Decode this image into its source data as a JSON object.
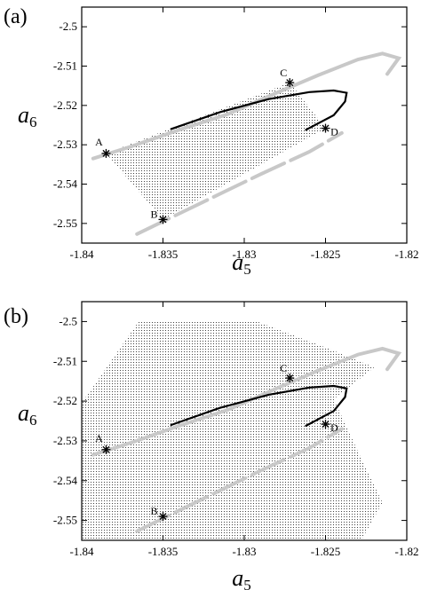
{
  "chart_data": [
    {
      "type": "scatter",
      "panel_label": "(a)",
      "xlabel_main": "a",
      "xlabel_sub": "5",
      "ylabel_main": "a",
      "ylabel_sub": "6",
      "xlim": [
        -1.84,
        -1.82
      ],
      "ylim": [
        -2.555,
        -2.495
      ],
      "xticks": [
        "-1.84",
        "-1.835",
        "-1.83",
        "-1.825",
        "-1.82"
      ],
      "yticks": [
        "-2.5",
        "-2.51",
        "-2.52",
        "-2.53",
        "-2.54",
        "-2.55"
      ],
      "xtick_values": [
        -1.84,
        -1.835,
        -1.83,
        -1.825,
        -1.82
      ],
      "ytick_values": [
        -2.5,
        -2.51,
        -2.52,
        -2.53,
        -2.54,
        -2.55
      ],
      "points": [
        {
          "label": "A",
          "x": -1.8385,
          "y": -2.5322
        },
        {
          "label": "B",
          "x": -1.835,
          "y": -2.549
        },
        {
          "label": "C",
          "x": -1.8272,
          "y": -2.5142
        },
        {
          "label": "D",
          "x": -1.825,
          "y": -2.5258
        }
      ],
      "region": [
        [
          -1.8385,
          -2.5322
        ],
        [
          -1.835,
          -2.549
        ],
        [
          -1.825,
          -2.5258
        ],
        [
          -1.8272,
          -2.5142
        ]
      ],
      "gray_upper": [
        [
          -1.8393,
          -2.5335
        ],
        [
          -1.837,
          -2.5305
        ],
        [
          -1.834,
          -2.5262
        ],
        [
          -1.831,
          -2.5222
        ],
        [
          -1.828,
          -2.5168
        ],
        [
          -1.8255,
          -2.5124
        ],
        [
          -1.823,
          -2.5083
        ],
        [
          -1.8215,
          -2.5068
        ],
        [
          -1.8205,
          -2.508
        ],
        [
          -1.8212,
          -2.512
        ]
      ],
      "gray_lower": [
        [
          -1.8366,
          -2.5527
        ],
        [
          -1.835,
          -2.5495
        ],
        [
          -1.832,
          -2.5435
        ],
        [
          -1.829,
          -2.5375
        ],
        [
          -1.826,
          -2.5318
        ],
        [
          -1.824,
          -2.527
        ]
      ],
      "black_curve": [
        [
          -1.8345,
          -2.526
        ],
        [
          -1.8315,
          -2.5217
        ],
        [
          -1.8285,
          -2.5184
        ],
        [
          -1.826,
          -2.5166
        ],
        [
          -1.8245,
          -2.5162
        ],
        [
          -1.8237,
          -2.5168
        ],
        [
          -1.8238,
          -2.519
        ],
        [
          -1.8245,
          -2.5225
        ],
        [
          -1.8262,
          -2.5262
        ]
      ]
    },
    {
      "type": "scatter",
      "panel_label": "(b)",
      "xlabel_main": "a",
      "xlabel_sub": "5",
      "ylabel_main": "a",
      "ylabel_sub": "6",
      "xlim": [
        -1.84,
        -1.82
      ],
      "ylim": [
        -2.555,
        -2.495
      ],
      "xticks": [
        "-1.84",
        "-1.835",
        "-1.83",
        "-1.825",
        "-1.82"
      ],
      "yticks": [
        "-2.5",
        "-2.51",
        "-2.52",
        "-2.53",
        "-2.54",
        "-2.55"
      ],
      "xtick_values": [
        -1.84,
        -1.835,
        -1.83,
        -1.825,
        -1.82
      ],
      "ytick_values": [
        -2.5,
        -2.51,
        -2.52,
        -2.53,
        -2.54,
        -2.55
      ],
      "points": [
        {
          "label": "A",
          "x": -1.8385,
          "y": -2.5322
        },
        {
          "label": "B",
          "x": -1.835,
          "y": -2.549
        },
        {
          "label": "C",
          "x": -1.8272,
          "y": -2.5142
        },
        {
          "label": "D",
          "x": -1.825,
          "y": -2.5258
        }
      ],
      "region": [
        [
          -1.84,
          -2.5205
        ],
        [
          -1.84,
          -2.555
        ],
        [
          -1.8228,
          -2.555
        ],
        [
          -1.8215,
          -2.5455
        ],
        [
          -1.8228,
          -2.5345
        ],
        [
          -1.8245,
          -2.5195
        ],
        [
          -1.822,
          -2.5115
        ],
        [
          -1.825,
          -2.5065
        ],
        [
          -1.8292,
          -2.5
        ],
        [
          -1.8365,
          -2.5
        ]
      ],
      "gray_upper": [
        [
          -1.8393,
          -2.5335
        ],
        [
          -1.837,
          -2.5305
        ],
        [
          -1.834,
          -2.5262
        ],
        [
          -1.831,
          -2.5222
        ],
        [
          -1.828,
          -2.5168
        ],
        [
          -1.8255,
          -2.5124
        ],
        [
          -1.823,
          -2.5083
        ],
        [
          -1.8215,
          -2.5068
        ],
        [
          -1.8205,
          -2.508
        ],
        [
          -1.8212,
          -2.512
        ]
      ],
      "gray_lower": [
        [
          -1.8366,
          -2.5527
        ],
        [
          -1.835,
          -2.5495
        ],
        [
          -1.832,
          -2.5435
        ],
        [
          -1.829,
          -2.5375
        ],
        [
          -1.826,
          -2.5318
        ],
        [
          -1.824,
          -2.527
        ]
      ],
      "black_curve": [
        [
          -1.8345,
          -2.526
        ],
        [
          -1.8315,
          -2.5217
        ],
        [
          -1.8285,
          -2.5184
        ],
        [
          -1.826,
          -2.5166
        ],
        [
          -1.8245,
          -2.5162
        ],
        [
          -1.8237,
          -2.5168
        ],
        [
          -1.8238,
          -2.519
        ],
        [
          -1.8245,
          -2.5225
        ],
        [
          -1.8262,
          -2.5262
        ]
      ]
    }
  ]
}
